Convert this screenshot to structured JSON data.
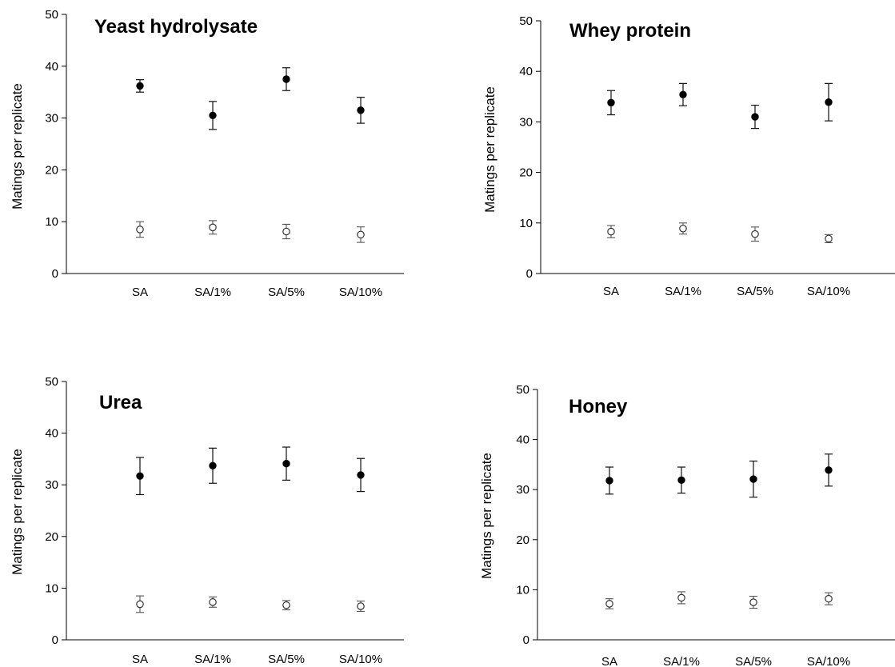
{
  "chart_data": [
    {
      "type": "scatter",
      "title": "Yeast hydrolysate",
      "xlabel": "",
      "ylabel": "Matings per replicate",
      "ylim": [
        0,
        50
      ],
      "yticks": [
        0,
        10,
        20,
        30,
        40,
        50
      ],
      "categories": [
        "SA",
        "SA/1%",
        "SA/5%",
        "SA/10%"
      ],
      "series": [
        {
          "marker": "filled",
          "values": [
            36.2,
            30.5,
            37.5,
            31.5
          ],
          "err_low": [
            1.2,
            2.7,
            2.2,
            2.5
          ],
          "err_high": [
            1.2,
            2.7,
            2.2,
            2.5
          ]
        },
        {
          "marker": "open",
          "values": [
            8.5,
            8.9,
            8.1,
            7.5
          ],
          "err_low": [
            1.5,
            1.3,
            1.4,
            1.5
          ],
          "err_high": [
            1.5,
            1.3,
            1.4,
            1.5
          ]
        }
      ]
    },
    {
      "type": "scatter",
      "title": "Whey protein",
      "xlabel": "",
      "ylabel": "Matings per replicate",
      "ylim": [
        0,
        50
      ],
      "yticks": [
        0,
        10,
        20,
        30,
        40,
        50
      ],
      "categories": [
        "SA",
        "SA/1%",
        "SA/5%",
        "SA/10%"
      ],
      "series": [
        {
          "marker": "filled",
          "values": [
            33.8,
            35.4,
            31.0,
            33.9
          ],
          "err_low": [
            2.4,
            2.2,
            2.3,
            3.7
          ],
          "err_high": [
            2.4,
            2.2,
            2.3,
            3.7
          ]
        },
        {
          "marker": "open",
          "values": [
            8.3,
            8.9,
            7.8,
            6.9
          ],
          "err_low": [
            1.2,
            1.1,
            1.4,
            0.8
          ],
          "err_high": [
            1.2,
            1.1,
            1.4,
            0.8
          ]
        }
      ]
    },
    {
      "type": "scatter",
      "title": "Urea",
      "xlabel": "",
      "ylabel": "Matings per replicate",
      "ylim": [
        0,
        50
      ],
      "yticks": [
        0,
        10,
        20,
        30,
        40,
        50
      ],
      "categories": [
        "SA",
        "SA/1%",
        "SA/5%",
        "SA/10%"
      ],
      "series": [
        {
          "marker": "filled",
          "values": [
            31.7,
            33.7,
            34.1,
            31.9
          ],
          "err_low": [
            3.6,
            3.4,
            3.2,
            3.2
          ],
          "err_high": [
            3.6,
            3.4,
            3.2,
            3.2
          ]
        },
        {
          "marker": "open",
          "values": [
            6.9,
            7.3,
            6.7,
            6.5
          ],
          "err_low": [
            1.6,
            1.0,
            0.9,
            1.0
          ],
          "err_high": [
            1.6,
            1.0,
            0.9,
            1.0
          ]
        }
      ]
    },
    {
      "type": "scatter",
      "title": "Honey",
      "xlabel": "",
      "ylabel": "Matings per replicate",
      "ylim": [
        0,
        50
      ],
      "yticks": [
        0,
        10,
        20,
        30,
        40,
        50
      ],
      "categories": [
        "SA",
        "SA/1%",
        "SA/5%",
        "SA/10%"
      ],
      "series": [
        {
          "marker": "filled",
          "values": [
            31.8,
            31.9,
            32.1,
            33.9
          ],
          "err_low": [
            2.7,
            2.6,
            3.6,
            3.2
          ],
          "err_high": [
            2.7,
            2.6,
            3.6,
            3.2
          ]
        },
        {
          "marker": "open",
          "values": [
            7.2,
            8.4,
            7.5,
            8.2
          ],
          "err_low": [
            1.0,
            1.2,
            1.2,
            1.2
          ],
          "err_high": [
            1.0,
            1.2,
            1.2,
            1.2
          ]
        }
      ]
    }
  ]
}
